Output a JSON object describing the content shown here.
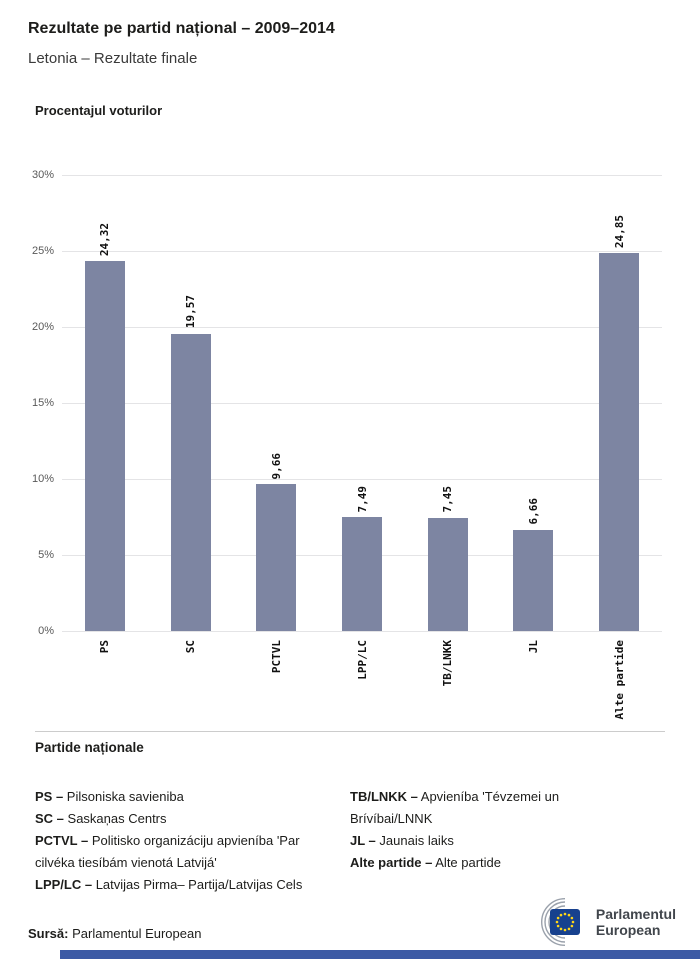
{
  "header": {
    "title": "Rezultate pe partid național – 2009–2014",
    "subtitle": "Letonia – Rezultate finale"
  },
  "chart": {
    "title": "Procentajul voturilor",
    "y_ticks": [
      "30%",
      "25%",
      "20%",
      "15%",
      "10%",
      "5%",
      "0%"
    ]
  },
  "chart_data": {
    "type": "bar",
    "title": "Procentajul voturilor",
    "categories": [
      "PS",
      "SC",
      "PCTVL",
      "LPP/LC",
      "TB/LNKK",
      "JL",
      "Alte partide"
    ],
    "values": [
      24.32,
      19.57,
      9.66,
      7.49,
      7.45,
      6.66,
      24.85
    ],
    "value_labels": [
      "24,32",
      "19,57",
      "9,66",
      "7,49",
      "7,45",
      "6,66",
      "24,85"
    ],
    "xlabel": "",
    "ylabel": "Procentajul voturilor",
    "ylim": [
      0,
      30
    ],
    "grid": true,
    "legend_position": "none",
    "bar_color": "#7d85a2"
  },
  "legend": {
    "title": "Partide naționale",
    "columns": [
      [
        {
          "abbr": "PS –",
          "name": "Pilsoniska savieniba"
        },
        {
          "abbr": "SC –",
          "name": "Saskaņas Centrs"
        },
        {
          "abbr": "PCTVL –",
          "name": "Politisko organizáciju apvieníba 'Par cilvéka tiesíbám vienotá Latvijá'"
        },
        {
          "abbr": "LPP/LC –",
          "name": "Latvijas Pirma– Partija/Latvijas Cels"
        }
      ],
      [
        {
          "abbr": "TB/LNKK –",
          "name": "Apvieníba 'Tévzemei un Brívíbai/LNNK"
        },
        {
          "abbr": "JL –",
          "name": "Jaunais laiks"
        },
        {
          "abbr": "Alte partide –",
          "name": "Alte partide"
        }
      ]
    ]
  },
  "footer": {
    "source_label": "Sursă:",
    "source_text": "Parlamentul European",
    "logo": {
      "line1": "Parlamentul",
      "line2": "European"
    }
  },
  "colors": {
    "bar": "#7d85a2",
    "grid": "#e4e4e6",
    "bottom_bar_blue": "#3b5aa5",
    "eu_flag_blue": "#17418e",
    "star_yellow": "#ffd617"
  }
}
